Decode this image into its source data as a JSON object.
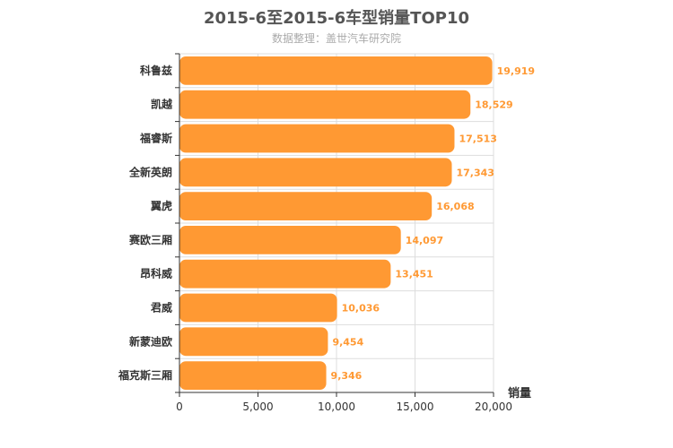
{
  "chart_data": {
    "type": "bar",
    "orientation": "horizontal",
    "title": "2015-6至2015-6车型销量TOP10",
    "subtitle": "数据整理：盖世汽车研究院",
    "categories": [
      "科鲁兹",
      "凯越",
      "福睿斯",
      "全新英朗",
      "翼虎",
      "赛欧三厢",
      "昂科威",
      "君威",
      "新蒙迪欧",
      "福克斯三厢"
    ],
    "values": [
      19919,
      18529,
      17513,
      17343,
      16068,
      14097,
      13451,
      10036,
      9454,
      9346
    ],
    "value_labels": [
      "19,919",
      "18,529",
      "17,513",
      "17,343",
      "16,068",
      "14,097",
      "13,451",
      "10,036",
      "9,454",
      "9,346"
    ],
    "xlabel": "销量",
    "ylabel": "",
    "xlim": [
      0,
      20000
    ],
    "x_ticks": [
      0,
      5000,
      10000,
      15000,
      20000
    ],
    "x_tick_labels": [
      "0",
      "5,000",
      "10,000",
      "15,000",
      "20,000"
    ],
    "grid": true,
    "legend": "none",
    "bar_color": "#ff9933",
    "label_color": "#ff9933"
  }
}
